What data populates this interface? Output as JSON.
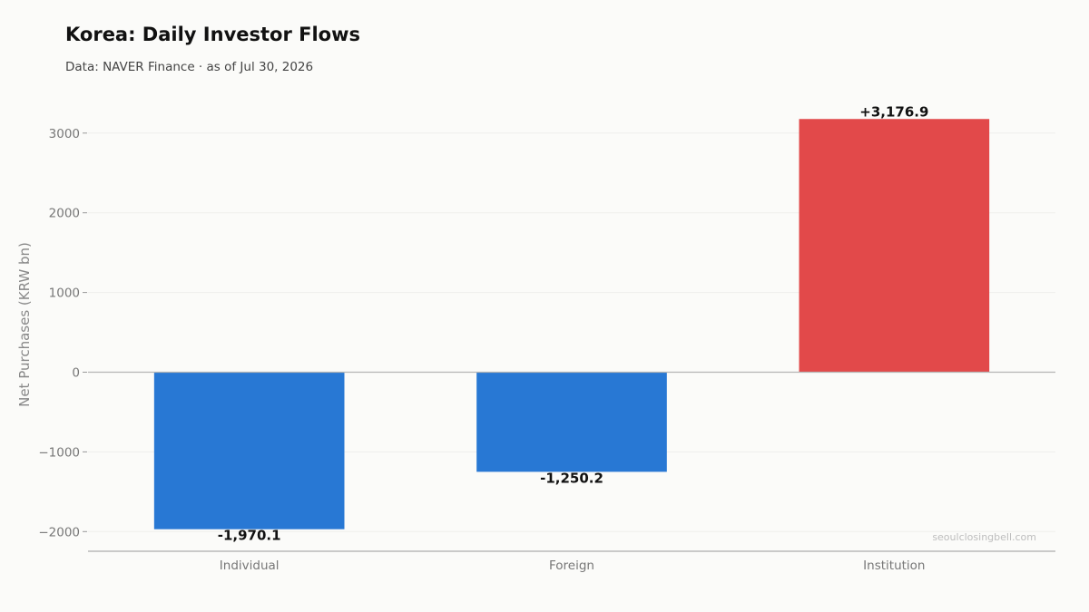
{
  "header": {
    "title": "Korea: Daily Investor Flows",
    "subtitle": "Data: NAVER Finance · as of Jul 30, 2026"
  },
  "watermark": "seoulclosingbell.com",
  "colors": {
    "negative": "#2878d4",
    "positive": "#e2494a",
    "background": "#fbfbf9"
  },
  "chart_data": {
    "type": "bar",
    "title": "Korea: Daily Investor Flows",
    "subtitle": "Data: NAVER Finance · as of Jul 30, 2026",
    "xlabel": "",
    "ylabel": "Net Purchases (KRW bn)",
    "categories": [
      "Individual",
      "Foreign",
      "Institution"
    ],
    "values": [
      -1970.1,
      -1250.2,
      3176.9
    ],
    "data_labels": [
      "-1,970.1",
      "-1,250.2",
      "+3,176.9"
    ],
    "yticks": [
      -2000,
      -1000,
      0,
      1000,
      2000,
      3000
    ],
    "ylim": [
      -2230,
      3470
    ],
    "grid": true,
    "legend": "none"
  }
}
